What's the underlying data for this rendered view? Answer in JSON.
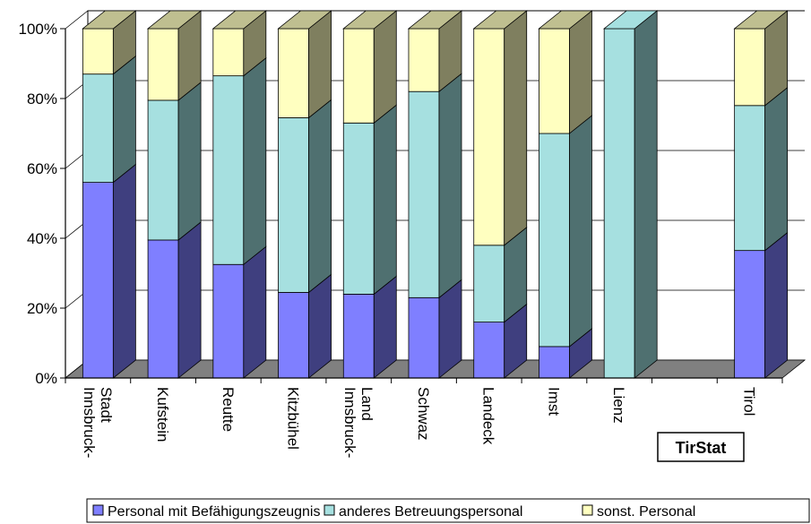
{
  "chart_data": {
    "type": "bar",
    "stacked": "percent",
    "three_d": true,
    "categories": [
      [
        "Innsbruck-",
        "Stadt"
      ],
      [
        "Kufstein"
      ],
      [
        "Reutte"
      ],
      [
        "Kitzbühel"
      ],
      [
        "Innsbruck-",
        "Land"
      ],
      [
        "Schwaz"
      ],
      [
        "Landeck"
      ],
      [
        "Imst"
      ],
      [
        "Lienz"
      ],
      [
        ""
      ],
      [
        "Tirol"
      ]
    ],
    "series": [
      {
        "name": "Personal mit Befähigungszeugnis",
        "color": "#7f7fff",
        "side_color": "#3f3f7f",
        "values": [
          56,
          39.5,
          32.5,
          24.5,
          24,
          23,
          16,
          9,
          0,
          null,
          36.5
        ]
      },
      {
        "name": "anderes Betreuungspersonal",
        "color": "#a6e0e0",
        "side_color": "#4f7070",
        "values": [
          31,
          40,
          54,
          50,
          49,
          59,
          22,
          61,
          100,
          null,
          41.5
        ]
      },
      {
        "name": "sonst. Personal",
        "color": "#ffffc0",
        "side_color": "#7f7f5f",
        "values": [
          13,
          20.5,
          13.5,
          25.5,
          27,
          18,
          62,
          30,
          0,
          null,
          22
        ]
      }
    ],
    "y_ticks": [
      "0%",
      "20%",
      "40%",
      "60%",
      "80%",
      "100%"
    ],
    "ylim": [
      0,
      100
    ],
    "grid": true,
    "legend": "bottom",
    "source_label": "TirStat"
  }
}
